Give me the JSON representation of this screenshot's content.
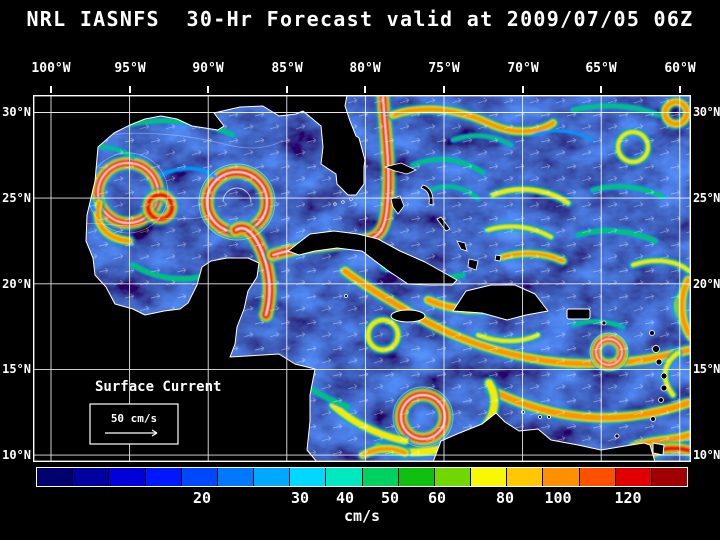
{
  "title": "NRL IASNFS  30-Hr Forecast valid at 2009/07/05 06Z",
  "map_annotations": {
    "legend": "Surface Current",
    "scale": "50 cm/s"
  },
  "axes": {
    "lon": [
      "100°W",
      "95°W",
      "90°W",
      "85°W",
      "80°W",
      "75°W",
      "70°W",
      "65°W",
      "60°W"
    ],
    "lat_left": [
      "30°N",
      "25°N",
      "20°N",
      "15°N",
      "10°N"
    ],
    "lat_right": [
      "30°N",
      "25°N",
      "20°N",
      "15°N",
      "10°N"
    ]
  },
  "colorbar": {
    "unit": "cm/s",
    "segments": [
      "#00006e",
      "#0000a0",
      "#0000d8",
      "#0018ff",
      "#0048ff",
      "#0078ff",
      "#00a8ff",
      "#00d8ff",
      "#00e8c0",
      "#00d060",
      "#10c010",
      "#70d800",
      "#f8f800",
      "#ffc800",
      "#ff9000",
      "#ff5000",
      "#e00000",
      "#a00000"
    ],
    "ticks": [
      {
        "label": "20",
        "pos": 25.5
      },
      {
        "label": "30",
        "pos": 40.5
      },
      {
        "label": "40",
        "pos": 47.4
      },
      {
        "label": "50",
        "pos": 54.3
      },
      {
        "label": "60",
        "pos": 61.5
      },
      {
        "label": "80",
        "pos": 71.9
      },
      {
        "label": "100",
        "pos": 80.1
      },
      {
        "label": "120",
        "pos": 90.8
      }
    ]
  }
}
